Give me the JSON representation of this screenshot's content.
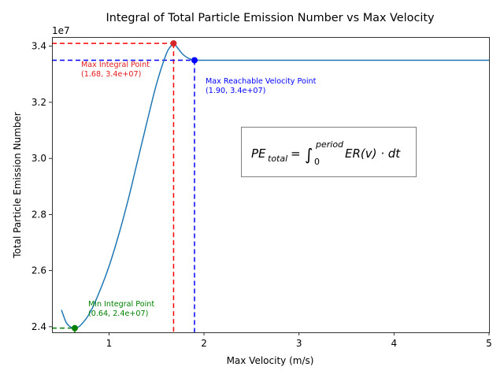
{
  "chart_data": {
    "type": "line",
    "title": "Integral of Total Particle Emission Number vs Max Velocity",
    "xlabel": "Max Velocity (m/s)",
    "ylabel": "Total Particle Emission Number",
    "y_offset_label": "1e7",
    "xlim": [
      0.4,
      5.0
    ],
    "ylim": [
      23800000,
      34300000
    ],
    "x_ticks": [
      1,
      2,
      3,
      4,
      5
    ],
    "x_tick_labels": [
      "1",
      "2",
      "3",
      "4",
      "5"
    ],
    "y_ticks": [
      24000000,
      26000000,
      28000000,
      30000000,
      32000000,
      34000000
    ],
    "y_tick_labels": [
      "2.4",
      "2.6",
      "2.8",
      "3.0",
      "3.2",
      "3.4"
    ],
    "grid": false,
    "series": [
      {
        "color": "#1f77b4",
        "x": [
          0.5,
          0.55,
          0.6,
          0.64,
          0.7,
          0.8,
          0.9,
          1.0,
          1.1,
          1.2,
          1.3,
          1.4,
          1.5,
          1.6,
          1.65,
          1.68,
          1.72,
          1.78,
          1.85,
          1.9,
          2.0,
          3.0,
          4.0,
          5.0
        ],
        "y": [
          24600000,
          24150000,
          23980000,
          23950000,
          24050000,
          24500000,
          25250000,
          26150000,
          27250000,
          28500000,
          29900000,
          31300000,
          32650000,
          33700000,
          34000000,
          34100000,
          33950000,
          33700000,
          33550000,
          33500000,
          33500000,
          33500000,
          33500000,
          33500000
        ]
      }
    ],
    "points": [
      {
        "label": "Max Integral Point",
        "value_label": "(1.68, 3.4e+07)",
        "x": 1.68,
        "y": 34100000,
        "color": "#d62728",
        "line_color": "#ff0000"
      },
      {
        "label": "Max Reachable Velocity Point",
        "value_label": "(1.90, 3.4e+07)",
        "x": 1.9,
        "y": 33500000,
        "color": "#0000ff",
        "line_color": "#0000ff"
      },
      {
        "label": "Min Integral Point",
        "value_label": "(0.64, 2.4e+07)",
        "x": 0.64,
        "y": 23950000,
        "color": "#008000",
        "line_color": "#008000"
      }
    ],
    "formula": {
      "lhs": "PE",
      "lhs_sub": "total",
      "equals": "=",
      "integral": "∫",
      "lower": "0",
      "upper": "period",
      "body": "ER(v) · dt"
    }
  }
}
